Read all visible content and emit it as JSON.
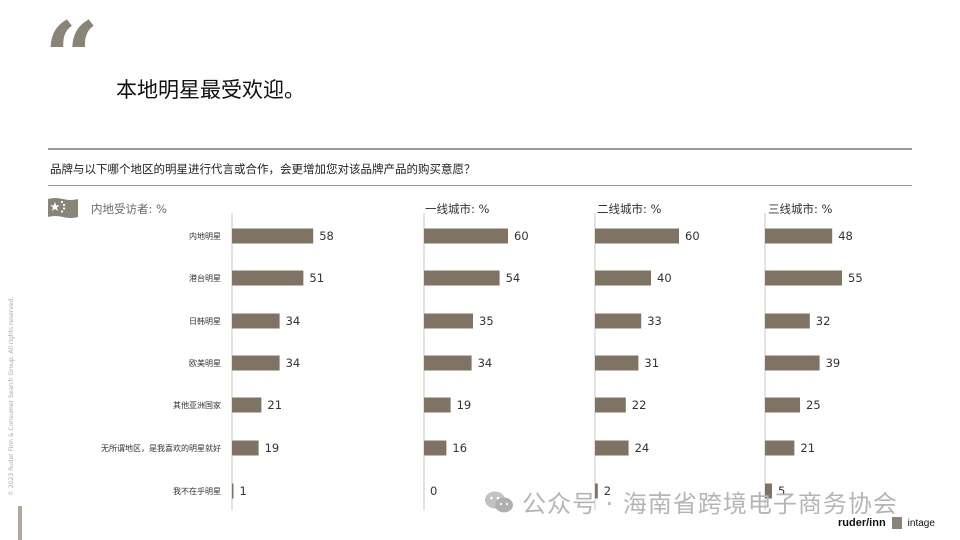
{
  "slide": {
    "quote_mark": "“",
    "headline": "本地明星最受欢迎。",
    "question": "品牌与以下哪个地区的明星进行代言或合作，会更增加您对该品牌产品的购买意愿？",
    "watermark": "公众号 · 海南省跨境电子商务协会",
    "copyright": "© 2023 Ruder Finn & Consumer Search Group. All rights reserved.",
    "logos": {
      "ruder": "ruder/inn",
      "intage": "intage"
    }
  },
  "colors": {
    "bar": "#7f7464",
    "axis": "#c8c8c8",
    "accent": "#8a8478"
  },
  "chart_data": [
    {
      "type": "bar",
      "title": "内地受访者: %",
      "categories": [
        "内地明星",
        "港台明星",
        "日韩明星",
        "欧美明星",
        "其他亚洲国家",
        "无所谓地区，是我喜欢的明星就好",
        "我不在乎明星"
      ],
      "values": [
        58,
        51,
        34,
        34,
        21,
        19,
        1
      ]
    },
    {
      "type": "bar",
      "title": "一线城市: %",
      "categories": [
        "内地明星",
        "港台明星",
        "日韩明星",
        "欧美明星",
        "其他亚洲国家",
        "无所谓地区，是我喜欢的明星就好",
        "我不在乎明星"
      ],
      "values": [
        60,
        54,
        35,
        34,
        19,
        16,
        0
      ]
    },
    {
      "type": "bar",
      "title": "二线城市: %",
      "categories": [
        "内地明星",
        "港台明星",
        "日韩明星",
        "欧美明星",
        "其他亚洲国家",
        "无所谓地区，是我喜欢的明星就好",
        "我不在乎明星"
      ],
      "values": [
        60,
        40,
        33,
        31,
        22,
        24,
        2
      ]
    },
    {
      "type": "bar",
      "title": "三线城市: %",
      "categories": [
        "内地明星",
        "港台明星",
        "日韩明星",
        "欧美明星",
        "其他亚洲国家",
        "无所谓地区，是我喜欢的明星就好",
        "我不在乎明星"
      ],
      "values": [
        48,
        55,
        32,
        39,
        25,
        21,
        5
      ]
    }
  ]
}
